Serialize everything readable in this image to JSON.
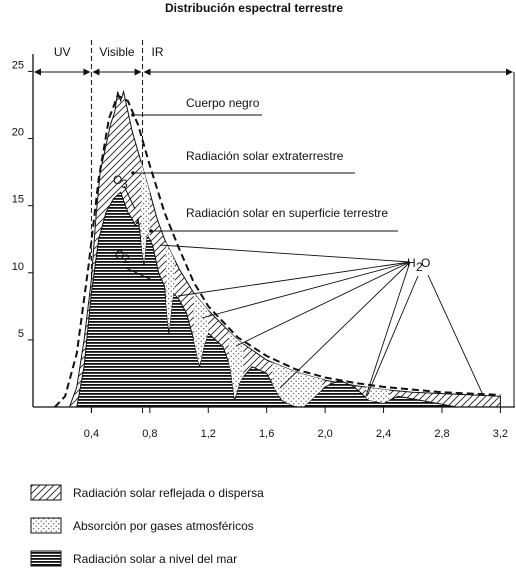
{
  "chart_data": {
    "type": "area",
    "title": "Distribución espectral terrestre",
    "xlabel": "",
    "ylabel": "",
    "xlim": [
      0.0,
      3.3
    ],
    "ylim": [
      0,
      26
    ],
    "x_ticks": [
      "0,4",
      "0,8",
      "1,2",
      "1,6",
      "2,0",
      "2,4",
      "2,8",
      "3,2"
    ],
    "y_ticks": [
      "5",
      "10",
      "15",
      "20",
      "25"
    ],
    "bands": [
      {
        "label": "UV",
        "from": 0.0,
        "to": 0.4
      },
      {
        "label": "Visible",
        "from": 0.4,
        "to": 0.75
      },
      {
        "label": "IR",
        "from": 0.75,
        "to": 3.3
      }
    ],
    "series": [
      {
        "name": "Cuerpo negro",
        "x": [
          0.15,
          0.22,
          0.3,
          0.38,
          0.45,
          0.52,
          0.58,
          0.65,
          0.72,
          0.8,
          0.9,
          1.0,
          1.1,
          1.2,
          1.4,
          1.6,
          1.8,
          2.0,
          2.2,
          2.4,
          2.6,
          2.8,
          3.0,
          3.2
        ],
        "y": [
          0.0,
          0.8,
          4.0,
          10.5,
          17.0,
          21.5,
          23.2,
          22.8,
          21.0,
          18.0,
          14.5,
          11.8,
          9.3,
          7.5,
          5.2,
          3.8,
          2.8,
          2.2,
          1.8,
          1.5,
          1.3,
          1.1,
          1.0,
          0.9
        ]
      },
      {
        "name": "Radiación solar extraterrestre",
        "x": [
          0.25,
          0.3,
          0.35,
          0.4,
          0.43,
          0.46,
          0.5,
          0.53,
          0.56,
          0.58,
          0.6,
          0.62,
          0.65,
          0.68,
          0.72,
          0.76,
          0.8,
          0.85,
          0.9,
          1.0,
          1.1,
          1.2,
          1.4,
          1.6,
          1.8,
          2.0,
          2.2,
          2.4,
          2.6,
          2.8,
          3.0,
          3.2
        ],
        "y": [
          0.0,
          1.5,
          5.0,
          9.5,
          14.0,
          17.5,
          19.5,
          21.0,
          22.0,
          23.5,
          22.8,
          23.5,
          22.0,
          20.5,
          19.0,
          17.5,
          16.0,
          14.0,
          12.5,
          10.3,
          8.5,
          7.2,
          5.0,
          3.5,
          2.6,
          2.0,
          1.6,
          1.3,
          1.1,
          1.0,
          0.9,
          0.8
        ]
      },
      {
        "name": "Radiación solar en superficie terrestre",
        "x": [
          0.3,
          0.35,
          0.4,
          0.45,
          0.5,
          0.55,
          0.6,
          0.65,
          0.68,
          0.7,
          0.72,
          0.76,
          0.78,
          0.82,
          0.86,
          0.9,
          0.93,
          0.96,
          1.0,
          1.05,
          1.1,
          1.14,
          1.17,
          1.2,
          1.3,
          1.35,
          1.38,
          1.42,
          1.5,
          1.6,
          1.7,
          1.8,
          1.85,
          1.9,
          2.0,
          2.1,
          2.2,
          2.3,
          2.4,
          2.5,
          2.6,
          2.7,
          2.8,
          2.9,
          3.0
        ],
        "y": [
          0.0,
          3.0,
          8.5,
          12.5,
          14.5,
          15.5,
          16.0,
          14.5,
          14.0,
          13.5,
          14.0,
          10.5,
          13.0,
          12.0,
          10.0,
          9.0,
          5.5,
          8.5,
          8.0,
          7.0,
          5.0,
          3.0,
          4.5,
          5.5,
          4.5,
          3.0,
          0.5,
          2.0,
          3.0,
          2.5,
          0.5,
          0.0,
          0.0,
          0.5,
          1.5,
          2.0,
          1.5,
          0.5,
          0.3,
          0.8,
          0.6,
          0.4,
          0.2,
          0.0,
          0.0
        ]
      }
    ],
    "annotations": [
      "Cuerpo negro",
      "Radiación solar extraterrestre",
      "Radiación solar en superficie terrestre",
      "O3",
      "O2",
      "H2O"
    ],
    "legend": {
      "placement": "bottom-left",
      "entries": [
        {
          "label": "Radiación solar reflejada o dispersa",
          "pattern": "diagonal-hatch"
        },
        {
          "label": "Absorción por gases atmosféricos",
          "pattern": "dots"
        },
        {
          "label": "Radiación solar a nivel del mar",
          "pattern": "horizontal-lines"
        }
      ]
    },
    "grid": false
  }
}
